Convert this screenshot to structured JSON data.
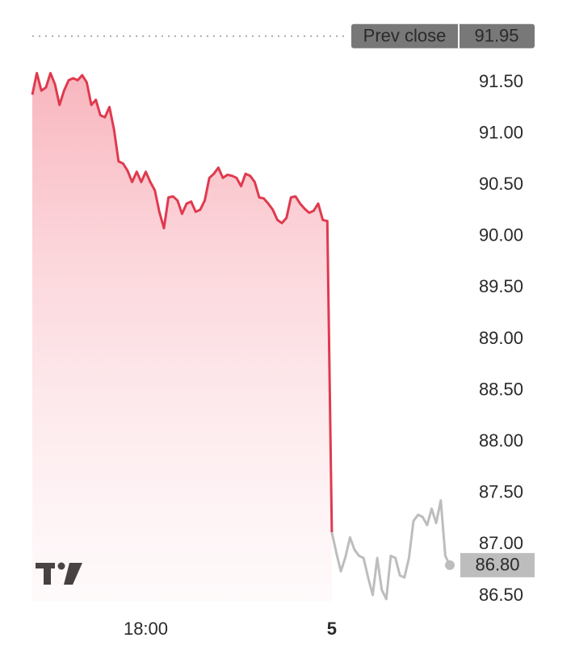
{
  "chart_data": {
    "type": "line",
    "x": [
      0,
      1,
      2,
      3,
      4,
      5,
      6,
      7,
      8,
      9,
      10,
      11,
      12,
      13,
      14,
      15,
      16,
      17,
      18,
      19,
      20,
      21,
      22,
      23,
      24,
      25,
      26,
      27,
      28,
      29,
      30,
      31,
      32,
      33,
      34,
      35,
      36,
      37,
      38,
      39,
      40,
      41,
      42,
      43,
      44,
      45,
      46,
      47,
      48,
      49,
      50,
      51,
      52,
      53,
      54,
      55,
      56,
      57,
      58,
      59,
      60,
      61,
      62,
      63,
      64,
      65,
      66,
      67,
      68,
      69,
      70,
      71,
      72,
      73,
      74,
      75,
      76,
      77,
      78,
      79,
      80,
      81,
      82,
      83,
      84,
      85,
      86,
      87,
      88,
      89,
      90,
      91,
      92
    ],
    "series": [
      {
        "color": "#e03a4e",
        "values": [
          91.38,
          91.59,
          91.42,
          91.45,
          91.59,
          91.48,
          91.28,
          91.42,
          91.52,
          91.54,
          91.52,
          91.57,
          91.5,
          91.28,
          91.33,
          91.18,
          91.16,
          91.26,
          91.04,
          90.73,
          90.71,
          90.64,
          90.53,
          90.63,
          90.53,
          90.63,
          90.53,
          90.45,
          90.24,
          90.08,
          90.38,
          90.39,
          90.35,
          90.22,
          90.32,
          90.34,
          90.24,
          90.26,
          90.35,
          90.57,
          90.61,
          90.67,
          90.57,
          90.6,
          90.59,
          90.57,
          90.49,
          90.61,
          90.59,
          90.53,
          90.38,
          90.37,
          90.32,
          90.26,
          90.16,
          90.13,
          90.18,
          90.38,
          90.39,
          90.32,
          90.27,
          90.23,
          90.25,
          90.32,
          90.16,
          90.15,
          87.12,
          null,
          null,
          null,
          null,
          null,
          null,
          null,
          null,
          null,
          null,
          null,
          null,
          null,
          null,
          null,
          null,
          null,
          null,
          null,
          null,
          null,
          null,
          null,
          null,
          null,
          null
        ]
      },
      {
        "color": "#bdbdbd",
        "values": [
          null,
          null,
          null,
          null,
          null,
          null,
          null,
          null,
          null,
          null,
          null,
          null,
          null,
          null,
          null,
          null,
          null,
          null,
          null,
          null,
          null,
          null,
          null,
          null,
          null,
          null,
          null,
          null,
          null,
          null,
          null,
          null,
          null,
          null,
          null,
          null,
          null,
          null,
          null,
          null,
          null,
          null,
          null,
          null,
          null,
          null,
          null,
          null,
          null,
          null,
          null,
          null,
          null,
          null,
          null,
          null,
          null,
          null,
          null,
          null,
          null,
          null,
          null,
          null,
          null,
          null,
          87.12,
          86.92,
          86.74,
          86.88,
          87.07,
          86.95,
          86.89,
          86.87,
          86.68,
          86.51,
          86.87,
          86.56,
          86.47,
          86.89,
          86.87,
          86.7,
          86.68,
          86.87,
          87.23,
          87.29,
          87.27,
          87.19,
          87.35,
          87.21,
          87.43,
          86.89,
          86.8
        ]
      }
    ],
    "xlim": [
      0,
      92
    ],
    "xticks": [
      {
        "value": 25,
        "label": "18:00"
      },
      {
        "value": 66,
        "label": "5"
      }
    ],
    "ylim": [
      86.45,
      92.15
    ],
    "yticks": [
      {
        "value": 86.5,
        "label": "86.50"
      },
      {
        "value": 87,
        "label": "87.00"
      },
      {
        "value": 87.5,
        "label": "87.50"
      },
      {
        "value": 88,
        "label": "88.00"
      },
      {
        "value": 88.5,
        "label": "88.50"
      },
      {
        "value": 89,
        "label": "89.00"
      },
      {
        "value": 89.5,
        "label": "89.50"
      },
      {
        "value": 90,
        "label": "90.00"
      },
      {
        "value": 90.5,
        "label": "90.50"
      },
      {
        "value": 91,
        "label": "91.00"
      },
      {
        "value": 91.5,
        "label": "91.50"
      }
    ],
    "grid": false,
    "prev_close": {
      "label": "Prev close",
      "value": 91.95
    },
    "last_price": {
      "value": 86.8,
      "label": "86.80"
    }
  }
}
